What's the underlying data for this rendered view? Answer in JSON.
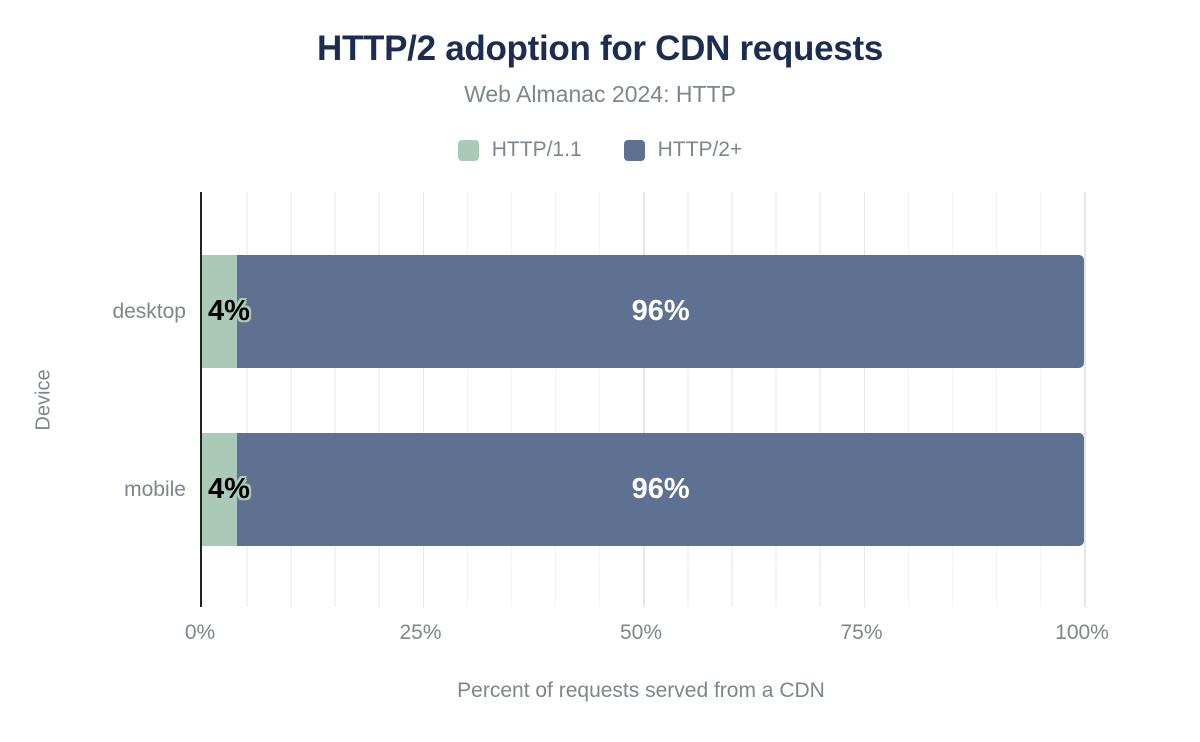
{
  "title": "HTTP/2 adoption for CDN requests",
  "subtitle": "Web Almanac 2024: HTTP",
  "colors": {
    "title": "#1b2e51",
    "muted_text": "#7e868d",
    "axis_line": "#222222",
    "grid_minor": "#f3f3f3",
    "grid_major": "#e7e7e7",
    "http11_green": "#aac9b7",
    "http2_blue": "#5f7190",
    "value_label_dark": "#000000",
    "value_label_light": "#ffffff"
  },
  "chart_data": {
    "type": "bar",
    "orientation": "horizontal",
    "stacked": true,
    "title": "HTTP/2 adoption for CDN requests",
    "subtitle": "Web Almanac 2024: HTTP",
    "categories": [
      "desktop",
      "mobile"
    ],
    "series": [
      {
        "name": "HTTP/1.1",
        "color": "#aac9b7",
        "values": [
          4,
          4
        ]
      },
      {
        "name": "HTTP/2+",
        "color": "#5f7190",
        "values": [
          96,
          96
        ]
      }
    ],
    "value_suffix": "%",
    "xlabel": "Percent of requests served from a CDN",
    "ylabel": "Device",
    "xlim": [
      0,
      100
    ],
    "x_ticks": [
      "0%",
      "25%",
      "50%",
      "75%",
      "100%"
    ],
    "grid": "vertical gridlines every 5%, darker every 25%",
    "legend_position": "top"
  }
}
